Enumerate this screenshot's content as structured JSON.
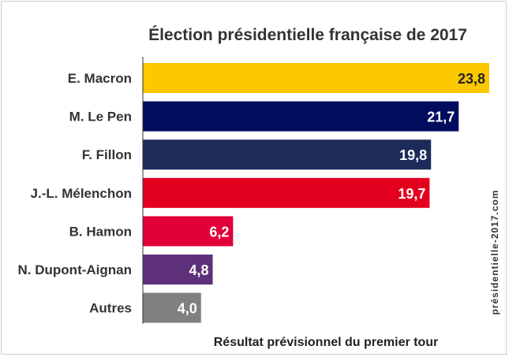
{
  "chart_data": {
    "type": "bar",
    "orientation": "horizontal",
    "title": "Élection présidentielle française de 2017",
    "xlabel": "Résultat prévisionnel du premier tour",
    "source": "présidentielle-2017.com",
    "xlim": [
      0,
      24.5
    ],
    "grid": false,
    "categories": [
      "E. Macron",
      "M. Le Pen",
      "F. Fillon",
      "J.-L. Mélenchon",
      "B. Hamon",
      "N. Dupont-Aignan",
      "Autres"
    ],
    "values": [
      23.8,
      21.7,
      19.8,
      19.7,
      6.2,
      4.8,
      4.0
    ],
    "value_labels": [
      "23,8",
      "21,7",
      "19,8",
      "19,7",
      "6,2",
      "4,8",
      "4,0"
    ],
    "colors": [
      "#fcc800",
      "#000c5e",
      "#1c2b5a",
      "#e3001f",
      "#e2003b",
      "#5e307a",
      "#808080"
    ]
  }
}
